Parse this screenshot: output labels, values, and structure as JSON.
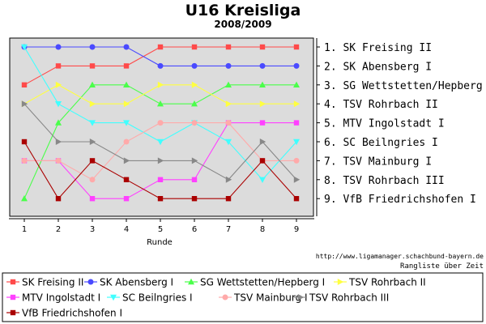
{
  "chart_data": {
    "type": "line",
    "title": "U16 Kreisliga",
    "subtitle": "2008/2009",
    "xlabel": "Runde",
    "ylabel": "",
    "x": [
      1,
      2,
      3,
      4,
      5,
      6,
      7,
      8,
      9
    ],
    "ylim": [
      1,
      9
    ],
    "y_inverted": true,
    "grid": false,
    "legend_position": "bottom",
    "ranking_labels": [
      "1. SK Freising II",
      "2. SK Abensberg I",
      "3. SG Wettstetten/Hepberg I",
      "4. TSV Rohrbach II",
      "5. MTV Ingolstadt I",
      "6. SC Beilngries I",
      "7. TSV Mainburg I",
      "8. TSV Rohrbach III",
      "9. VfB Friedrichshofen I"
    ],
    "series": [
      {
        "name": "SK Freising II",
        "color": "#ff4a4a",
        "marker": "square",
        "values": [
          3,
          2,
          2,
          2,
          1,
          1,
          1,
          1,
          1
        ]
      },
      {
        "name": "SK Abensberg I",
        "color": "#4a4aff",
        "marker": "circle",
        "values": [
          1,
          1,
          1,
          1,
          2,
          2,
          2,
          2,
          2
        ]
      },
      {
        "name": "SG Wettstetten/Hepberg I",
        "color": "#4aff4a",
        "marker": "triangle-up",
        "values": [
          9,
          5,
          3,
          3,
          4,
          4,
          3,
          3,
          3
        ]
      },
      {
        "name": "TSV Rohrbach II",
        "color": "#ffff40",
        "marker": "triangle-right",
        "values": [
          4,
          3,
          4,
          4,
          3,
          3,
          4,
          4,
          4
        ]
      },
      {
        "name": "MTV Ingolstadt I",
        "color": "#ff40ff",
        "marker": "square",
        "values": [
          7,
          7,
          9,
          9,
          8,
          8,
          5,
          5,
          5
        ]
      },
      {
        "name": "SC Beilngries I",
        "color": "#40ffff",
        "marker": "triangle-down",
        "values": [
          1,
          4,
          5,
          5,
          6,
          5,
          6,
          8,
          6
        ]
      },
      {
        "name": "TSV Mainburg I",
        "color": "#ffaaaa",
        "marker": "circle",
        "values": [
          7,
          7,
          8,
          6,
          5,
          5,
          5,
          7,
          7
        ]
      },
      {
        "name": "TSV Rohrbach III",
        "color": "#888888",
        "marker": "triangle-right",
        "values": [
          4,
          6,
          6,
          7,
          7,
          7,
          8,
          6,
          8
        ]
      },
      {
        "name": "VfB Friedrichshofen I",
        "color": "#aa0000",
        "marker": "square",
        "values": [
          6,
          9,
          7,
          8,
          9,
          9,
          9,
          7,
          9
        ]
      }
    ],
    "credit_url": "http://www.ligamanager.schachbund-bayern.de",
    "credit_caption": "Rangliste über Zeit"
  }
}
